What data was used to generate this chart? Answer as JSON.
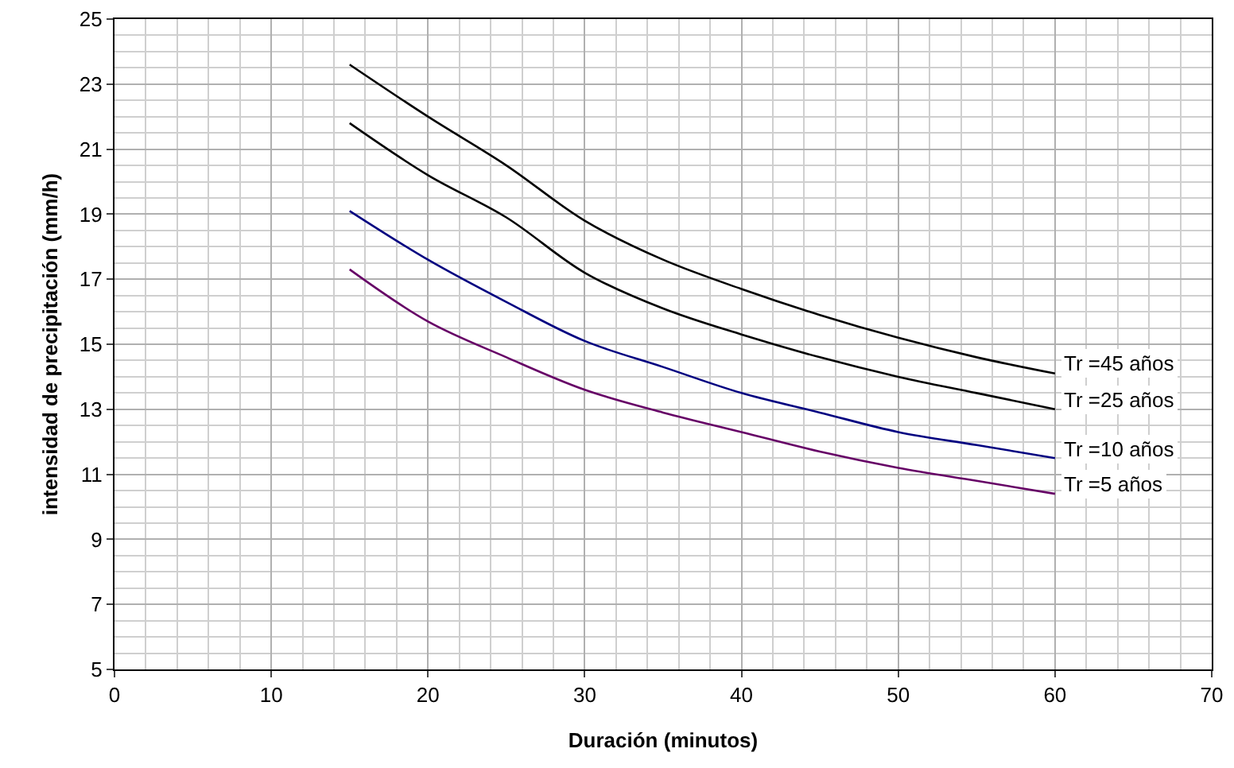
{
  "chart_data": {
    "type": "line",
    "xlabel": "Duración (minutos)",
    "ylabel": "intensidad de precipitación (mm/h)",
    "x": [
      15,
      20,
      25,
      30,
      35,
      40,
      45,
      50,
      55,
      60
    ],
    "series": [
      {
        "name": "Tr =45 años",
        "color": "#000000",
        "values": [
          23.6,
          22.0,
          20.5,
          18.8,
          17.6,
          16.7,
          15.9,
          15.2,
          14.6,
          14.1
        ]
      },
      {
        "name": "Tr =25 años",
        "color": "#000000",
        "values": [
          21.8,
          20.2,
          18.9,
          17.2,
          16.1,
          15.3,
          14.6,
          14.0,
          13.5,
          13.0
        ]
      },
      {
        "name": "Tr =10 años",
        "color": "#000080",
        "x": [
          15,
          20,
          25,
          30,
          35,
          40,
          45,
          50,
          55,
          60
        ],
        "values": [
          19.1,
          17.6,
          16.3,
          15.1,
          14.3,
          13.5,
          12.9,
          12.3,
          11.9,
          11.5
        ]
      },
      {
        "name": "Tr =5 años",
        "color": "#660066",
        "values": [
          17.3,
          15.7,
          14.6,
          13.6,
          12.9,
          12.3,
          11.7,
          11.2,
          10.8,
          10.4
        ]
      }
    ],
    "xlim": [
      0,
      70
    ],
    "xticks": [
      0,
      10,
      20,
      30,
      40,
      50,
      60,
      70
    ],
    "ylim": [
      5,
      25
    ],
    "yticks": [
      5,
      7,
      9,
      11,
      13,
      15,
      17,
      19,
      21,
      23,
      25
    ],
    "grid": true,
    "legend": false,
    "marker": "none",
    "line_style": "solid"
  }
}
